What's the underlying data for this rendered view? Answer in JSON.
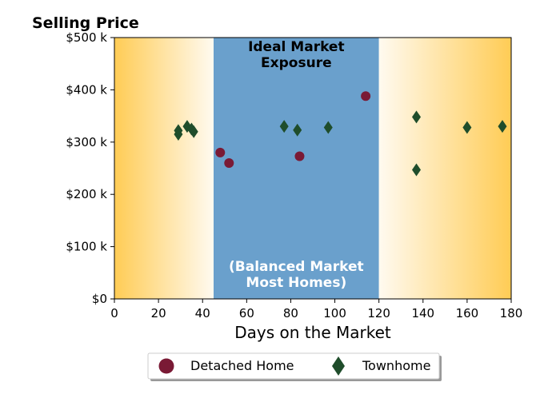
{
  "colors": {
    "gradient_edge": "#ffcc55",
    "gradient_center": "#fffaf0",
    "ideal_band": "#6aa0cc",
    "detached": "#7a1a35",
    "townhome": "#1f4d2b"
  },
  "chart_data": {
    "type": "scatter",
    "title": "Selling Price",
    "xlabel": "Days on the Market",
    "ylabel": "",
    "xlim": [
      0,
      180
    ],
    "ylim": [
      0,
      500000
    ],
    "x_ticks": [
      0,
      20,
      40,
      60,
      80,
      100,
      120,
      140,
      160,
      180
    ],
    "x_tick_labels": [
      "0",
      "20",
      "40",
      "60",
      "80",
      "100",
      "120",
      "140",
      "160",
      "180"
    ],
    "y_ticks": [
      0,
      100000,
      200000,
      300000,
      400000,
      500000
    ],
    "y_tick_labels": [
      "$0",
      "$100 k",
      "$200 k",
      "$300 k",
      "$400 k",
      "$500 k"
    ],
    "grid": false,
    "legend_placement": "below",
    "shaded_regions": [
      {
        "x_start": 0,
        "x_end": 45,
        "style": "gradient"
      },
      {
        "x_start": 45,
        "x_end": 120,
        "style": "solid"
      },
      {
        "x_start": 120,
        "x_end": 180,
        "style": "gradient"
      }
    ],
    "annotations": {
      "top_lines": [
        "Ideal Market",
        "Exposure"
      ],
      "bottom_lines": [
        "(Balanced Market",
        "Most Homes)"
      ]
    },
    "series": [
      {
        "name": "Detached Home",
        "marker": "circle",
        "points": [
          {
            "x": 48,
            "y": 280000
          },
          {
            "x": 52,
            "y": 260000
          },
          {
            "x": 84,
            "y": 273000
          },
          {
            "x": 114,
            "y": 388000
          }
        ]
      },
      {
        "name": "Townhome",
        "marker": "diamond",
        "points": [
          {
            "x": 29,
            "y": 315000
          },
          {
            "x": 29,
            "y": 322000
          },
          {
            "x": 33,
            "y": 330000
          },
          {
            "x": 35,
            "y": 325000
          },
          {
            "x": 36,
            "y": 320000
          },
          {
            "x": 77,
            "y": 330000
          },
          {
            "x": 83,
            "y": 323000
          },
          {
            "x": 97,
            "y": 328000
          },
          {
            "x": 137,
            "y": 348000
          },
          {
            "x": 137,
            "y": 247000
          },
          {
            "x": 160,
            "y": 328000
          },
          {
            "x": 176,
            "y": 330000
          }
        ]
      }
    ]
  }
}
